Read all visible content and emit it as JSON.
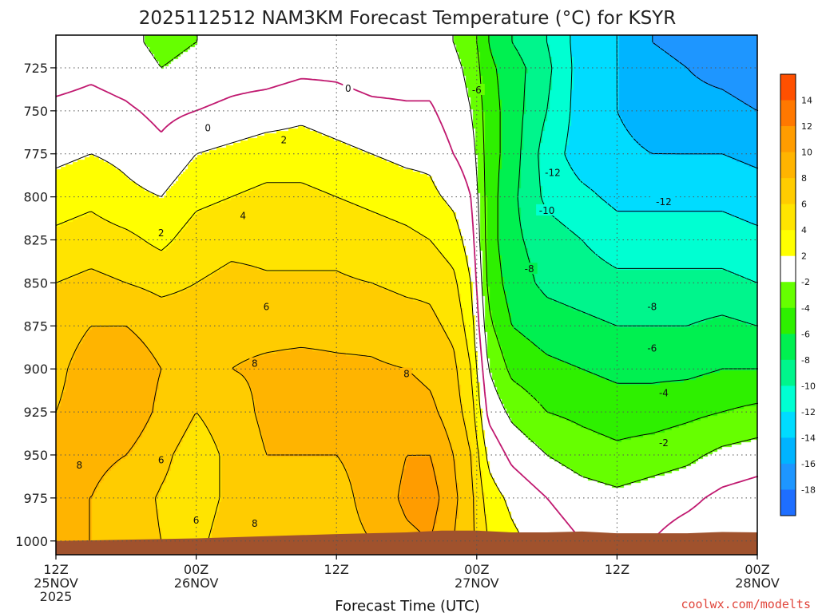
{
  "chart_data": {
    "type": "heatmap",
    "title": "2025112512 NAM3KM Forecast Temperature (°C) for KSYR",
    "xlabel": "Forecast Time (UTC)",
    "ylabel": "",
    "credit": "coolwx.com/modelts",
    "y_axis": {
      "inverted": true,
      "range": [
        1008,
        706
      ],
      "ticks": [
        725,
        750,
        775,
        800,
        825,
        850,
        875,
        900,
        925,
        950,
        975,
        1000
      ]
    },
    "x_axis": {
      "range_hours": [
        0,
        60
      ],
      "ticks": [
        {
          "hour": 0,
          "lines": [
            "12Z",
            "25NOV",
            "2025"
          ]
        },
        {
          "hour": 12,
          "lines": [
            "00Z",
            "26NOV"
          ]
        },
        {
          "hour": 24,
          "lines": [
            "12Z"
          ]
        },
        {
          "hour": 36,
          "lines": [
            "00Z",
            "27NOV"
          ]
        },
        {
          "hour": 48,
          "lines": [
            "12Z"
          ]
        },
        {
          "hour": 60,
          "lines": [
            "00Z",
            "28NOV"
          ]
        }
      ]
    },
    "colorbar": {
      "levels": [
        -20,
        -18,
        -16,
        -14,
        -12,
        -10,
        -8,
        -6,
        -4,
        -2,
        2,
        4,
        6,
        8,
        10,
        12,
        14,
        16
      ],
      "labels": [
        "-18",
        "-16",
        "-14",
        "-12",
        "-10",
        "-8",
        "-6",
        "-4",
        "-2",
        "2",
        "4",
        "6",
        "8",
        "10",
        "12",
        "14"
      ],
      "colors": [
        "#1e6eff",
        "#1e96ff",
        "#00b4ff",
        "#00dcff",
        "#00ffd2",
        "#00f58c",
        "#00f050",
        "#2ef000",
        "#66ff00",
        "#ffffff",
        "#ffff00",
        "#ffe400",
        "#ffcc00",
        "#ffb400",
        "#ff9c00",
        "#ff7800",
        "#ff5000"
      ]
    },
    "temperature_profiles": {
      "levels_hpa": [
        710,
        725,
        750,
        775,
        800,
        825,
        850,
        875,
        900,
        925,
        950,
        975,
        1000,
        1008
      ],
      "series": [
        {
          "hour": 0,
          "temps": [
            -1.5,
            -1,
            0.5,
            1.5,
            3,
            4.5,
            6,
            7,
            7.5,
            8,
            8,
            8,
            8,
            8
          ]
        },
        {
          "hour": 3,
          "temps": [
            -1,
            -0.5,
            0.8,
            2,
            3.5,
            5,
            6.5,
            8,
            9,
            9,
            8.5,
            8,
            8,
            8
          ]
        },
        {
          "hour": 6,
          "temps": [
            -1.5,
            -1,
            0.3,
            1.5,
            2.5,
            4.5,
            6,
            8,
            9.5,
            9.5,
            8,
            7,
            7,
            7
          ]
        },
        {
          "hour": 9,
          "temps": [
            -2.5,
            -2,
            -0.5,
            0.5,
            2,
            3.5,
            5.5,
            7,
            8,
            7.5,
            6.5,
            5.8,
            6,
            6
          ]
        },
        {
          "hour": 12,
          "temps": [
            -2,
            -1.5,
            0,
            2,
            3.5,
            5,
            6,
            7,
            7.5,
            6,
            5,
            5,
            5.5,
            5.5
          ]
        },
        {
          "hour": 15,
          "temps": [
            -2,
            -1,
            0.5,
            2.5,
            4,
            5.5,
            6.5,
            7.5,
            8,
            7,
            6.5,
            6.5,
            7,
            7
          ]
        },
        {
          "hour": 18,
          "temps": [
            -1.5,
            -1,
            1,
            3,
            4.5,
            5.5,
            6.2,
            7.5,
            8.3,
            8.5,
            8,
            7.5,
            7.5,
            7.5
          ]
        },
        {
          "hour": 21,
          "temps": [
            -1,
            -0.5,
            1.5,
            3,
            4.5,
            5.5,
            6.2,
            7.5,
            8.5,
            8.5,
            8,
            7.5,
            7.5,
            7.5
          ]
        },
        {
          "hour": 24,
          "temps": [
            -1,
            -0.5,
            1,
            2.5,
            4,
            5.5,
            6.2,
            7.5,
            8.3,
            8.5,
            8,
            7.5,
            7.5,
            7.5
          ]
        },
        {
          "hour": 27,
          "temps": [
            -1.5,
            -1,
            0.5,
            2,
            3.5,
            5,
            6,
            7.5,
            8.2,
            8.5,
            8.5,
            8.5,
            8,
            8
          ]
        },
        {
          "hour": 30,
          "temps": [
            -1.5,
            -1,
            0.3,
            1.5,
            3,
            4.5,
            5.5,
            7,
            8,
            9,
            10,
            10.5,
            9.5,
            9
          ]
        },
        {
          "hour": 32,
          "temps": [
            -1.5,
            -1,
            0.3,
            1.5,
            2.5,
            4,
            5.5,
            6.5,
            7.5,
            8.5,
            10,
            11,
            10,
            9
          ]
        },
        {
          "hour": 34,
          "temps": [
            -2,
            -1.5,
            -1,
            0,
            1.5,
            3,
            4.5,
            5.5,
            6.5,
            7,
            8,
            8.5,
            8,
            8
          ]
        },
        {
          "hour": 35.5,
          "temps": [
            -3,
            -2.5,
            -2,
            -1,
            0,
            1,
            2,
            3,
            4,
            5,
            6,
            6.5,
            6.5,
            6.5
          ]
        },
        {
          "hour": 37,
          "temps": [
            -6,
            -5.5,
            -5,
            -5,
            -5,
            -5,
            -4.5,
            -3.5,
            -2,
            -0.5,
            1.5,
            3,
            4,
            4
          ]
        },
        {
          "hour": 39,
          "temps": [
            -8,
            -7,
            -7,
            -7,
            -7.5,
            -7.5,
            -7,
            -6,
            -4.5,
            -2.5,
            -0.5,
            1.5,
            2.5,
            2.5
          ]
        },
        {
          "hour": 42,
          "temps": [
            -10,
            -9.5,
            -10,
            -11,
            -10.5,
            -9,
            -8.5,
            -7,
            -5.5,
            -4,
            -2,
            0,
            1,
            1
          ]
        },
        {
          "hour": 45,
          "temps": [
            -13,
            -13,
            -13,
            -13,
            -11.5,
            -10,
            -9,
            -7.5,
            -6,
            -4.5,
            -3,
            -1,
            0,
            0
          ]
        },
        {
          "hour": 48,
          "temps": [
            -14,
            -14,
            -14,
            -13.5,
            -12.5,
            -11,
            -9.5,
            -8,
            -6.5,
            -5,
            -3.5,
            -1.5,
            -0.5,
            -0.5
          ]
        },
        {
          "hour": 51,
          "temps": [
            -16,
            -15.5,
            -15,
            -14,
            -12.5,
            -11,
            -9.5,
            -8,
            -6.5,
            -5,
            -3,
            -1,
            0,
            0
          ]
        },
        {
          "hour": 54,
          "temps": [
            -16.5,
            -16,
            -15.5,
            -14,
            -12.5,
            -11,
            -9.5,
            -8,
            -6.5,
            -4.5,
            -2.5,
            -0.5,
            1,
            1
          ]
        },
        {
          "hour": 57,
          "temps": [
            -17,
            -16.5,
            -15.5,
            -14,
            -12.5,
            -11,
            -9.5,
            -7.5,
            -6,
            -4,
            -1.5,
            0.5,
            1.5,
            1.5
          ]
        },
        {
          "hour": 60,
          "temps": [
            -17.5,
            -17,
            -16,
            -14.5,
            -13,
            -11.5,
            -10,
            -8,
            -6,
            -3.5,
            -1,
            1,
            1.5,
            1.5
          ]
        }
      ]
    },
    "contour_labels": [
      {
        "text": "0",
        "hour": 25,
        "hpa": 737
      },
      {
        "text": "0",
        "hour": 13,
        "hpa": 760
      },
      {
        "text": "2",
        "hour": 19.5,
        "hpa": 767
      },
      {
        "text": "2",
        "hour": 9,
        "hpa": 821
      },
      {
        "text": "4",
        "hour": 16,
        "hpa": 811
      },
      {
        "text": "6",
        "hour": 18,
        "hpa": 864
      },
      {
        "text": "8",
        "hour": 17,
        "hpa": 897
      },
      {
        "text": "8",
        "hour": 30,
        "hpa": 903
      },
      {
        "text": "8",
        "hour": 2,
        "hpa": 956
      },
      {
        "text": "6",
        "hour": 9,
        "hpa": 953
      },
      {
        "text": "6",
        "hour": 12,
        "hpa": 988
      },
      {
        "text": "8",
        "hour": 17,
        "hpa": 990
      },
      {
        "text": "-6",
        "hour": 36,
        "hpa": 738
      },
      {
        "text": "-12",
        "hour": 42.5,
        "hpa": 786
      },
      {
        "text": "-10",
        "hour": 42,
        "hpa": 808
      },
      {
        "text": "-12",
        "hour": 52,
        "hpa": 803
      },
      {
        "text": "-8",
        "hour": 40.5,
        "hpa": 842
      },
      {
        "text": "-8",
        "hour": 51,
        "hpa": 864
      },
      {
        "text": "-6",
        "hour": 51,
        "hpa": 888
      },
      {
        "text": "-4",
        "hour": 52,
        "hpa": 914
      },
      {
        "text": "-2",
        "hour": 52,
        "hpa": 943
      }
    ],
    "surface_pressure": [
      {
        "hour": 0,
        "hpa": 1000
      },
      {
        "hour": 12,
        "hpa": 998.5
      },
      {
        "hour": 24,
        "hpa": 996
      },
      {
        "hour": 30,
        "hpa": 995
      },
      {
        "hour": 33,
        "hpa": 994
      },
      {
        "hour": 36,
        "hpa": 994
      },
      {
        "hour": 39,
        "hpa": 995
      },
      {
        "hour": 42,
        "hpa": 995
      },
      {
        "hour": 45,
        "hpa": 994.5
      },
      {
        "hour": 48,
        "hpa": 995.5
      },
      {
        "hour": 51,
        "hpa": 995.5
      },
      {
        "hour": 54,
        "hpa": 995.5
      },
      {
        "hour": 57,
        "hpa": 994.8
      },
      {
        "hour": 60,
        "hpa": 995
      }
    ]
  }
}
